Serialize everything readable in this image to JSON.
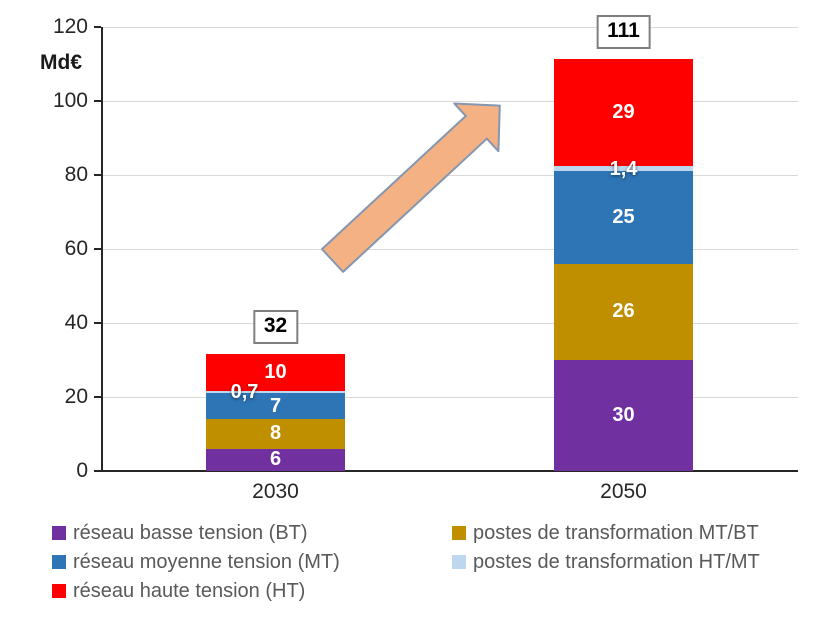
{
  "chart_data": {
    "type": "bar",
    "stacked": true,
    "title": "",
    "unit_label": "Md€",
    "categories": [
      "2030",
      "2050"
    ],
    "series": [
      {
        "name": "réseau basse tension (BT)",
        "color": "#7030A0",
        "values": [
          6,
          30
        ],
        "labels": [
          "6",
          "30"
        ]
      },
      {
        "name": "postes de transformation MT/BT",
        "color": "#BF8F00",
        "values": [
          8,
          26
        ],
        "labels": [
          "8",
          "26"
        ]
      },
      {
        "name": "réseau moyenne tension (MT)",
        "color": "#2E75B6",
        "values": [
          7,
          25
        ],
        "labels": [
          "7",
          "25"
        ]
      },
      {
        "name": "postes de transformation HT/MT",
        "color": "#BDD7EE",
        "values": [
          0.7,
          1.4
        ],
        "labels": [
          "0,7",
          "1,4"
        ],
        "label_dx": [
          -31,
          0
        ]
      },
      {
        "name": "réseau haute tension (HT)",
        "color": "#FF0000",
        "values": [
          10,
          29
        ],
        "labels": [
          "10",
          "29"
        ]
      }
    ],
    "totals": [
      "32",
      "111"
    ],
    "ylim": [
      0,
      120
    ],
    "y_ticks": [
      0,
      20,
      40,
      60,
      80,
      100,
      120
    ],
    "grid": true,
    "legend_position": "bottom",
    "colors": {
      "axis": "#262626",
      "gridline": "#D9D9D9",
      "value_label": "#FFFFFF",
      "total_border": "#7F7F7F",
      "total_text": "#000000",
      "legend_text": "#595959",
      "arrow_fill": "#F4B183",
      "arrow_stroke": "#8496B0"
    }
  }
}
